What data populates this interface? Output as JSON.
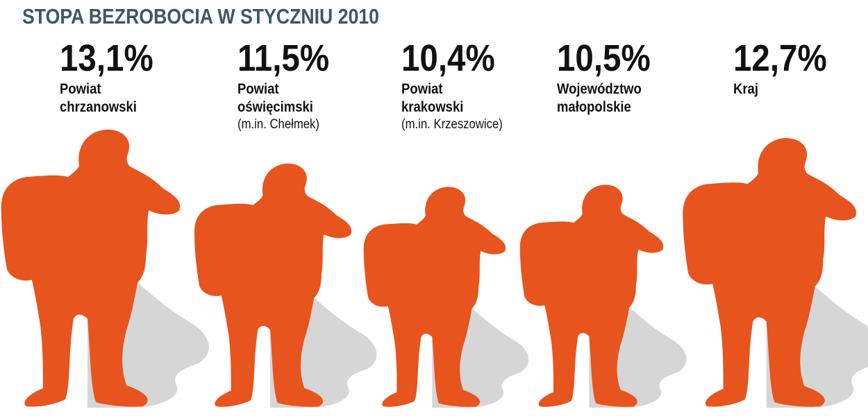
{
  "colors": {
    "title": "#3d5865",
    "figure": "#e8541e",
    "shadow": "#cfcfcf",
    "text": "#111111"
  },
  "chart_data": {
    "type": "bar",
    "title": "STOPA BEZROBOCIA W STYCZNIU 2010",
    "unit": "%",
    "categories": [
      {
        "name": "Powiat\nchrzanowski",
        "note": ""
      },
      {
        "name": "Powiat\noświęcimski",
        "note": "(m.in. Chełmek)"
      },
      {
        "name": "Powiat\nkrakowski",
        "note": "(m.in. Krzeszowice)"
      },
      {
        "name": "Województwo\nmałopolskie",
        "note": ""
      },
      {
        "name": "Kraj",
        "note": ""
      }
    ],
    "values": [
      13.1,
      11.5,
      10.4,
      10.5,
      12.7
    ],
    "value_labels": [
      "13,1%",
      "11,5%",
      "10,4%",
      "10,5%",
      "12,7%"
    ]
  }
}
